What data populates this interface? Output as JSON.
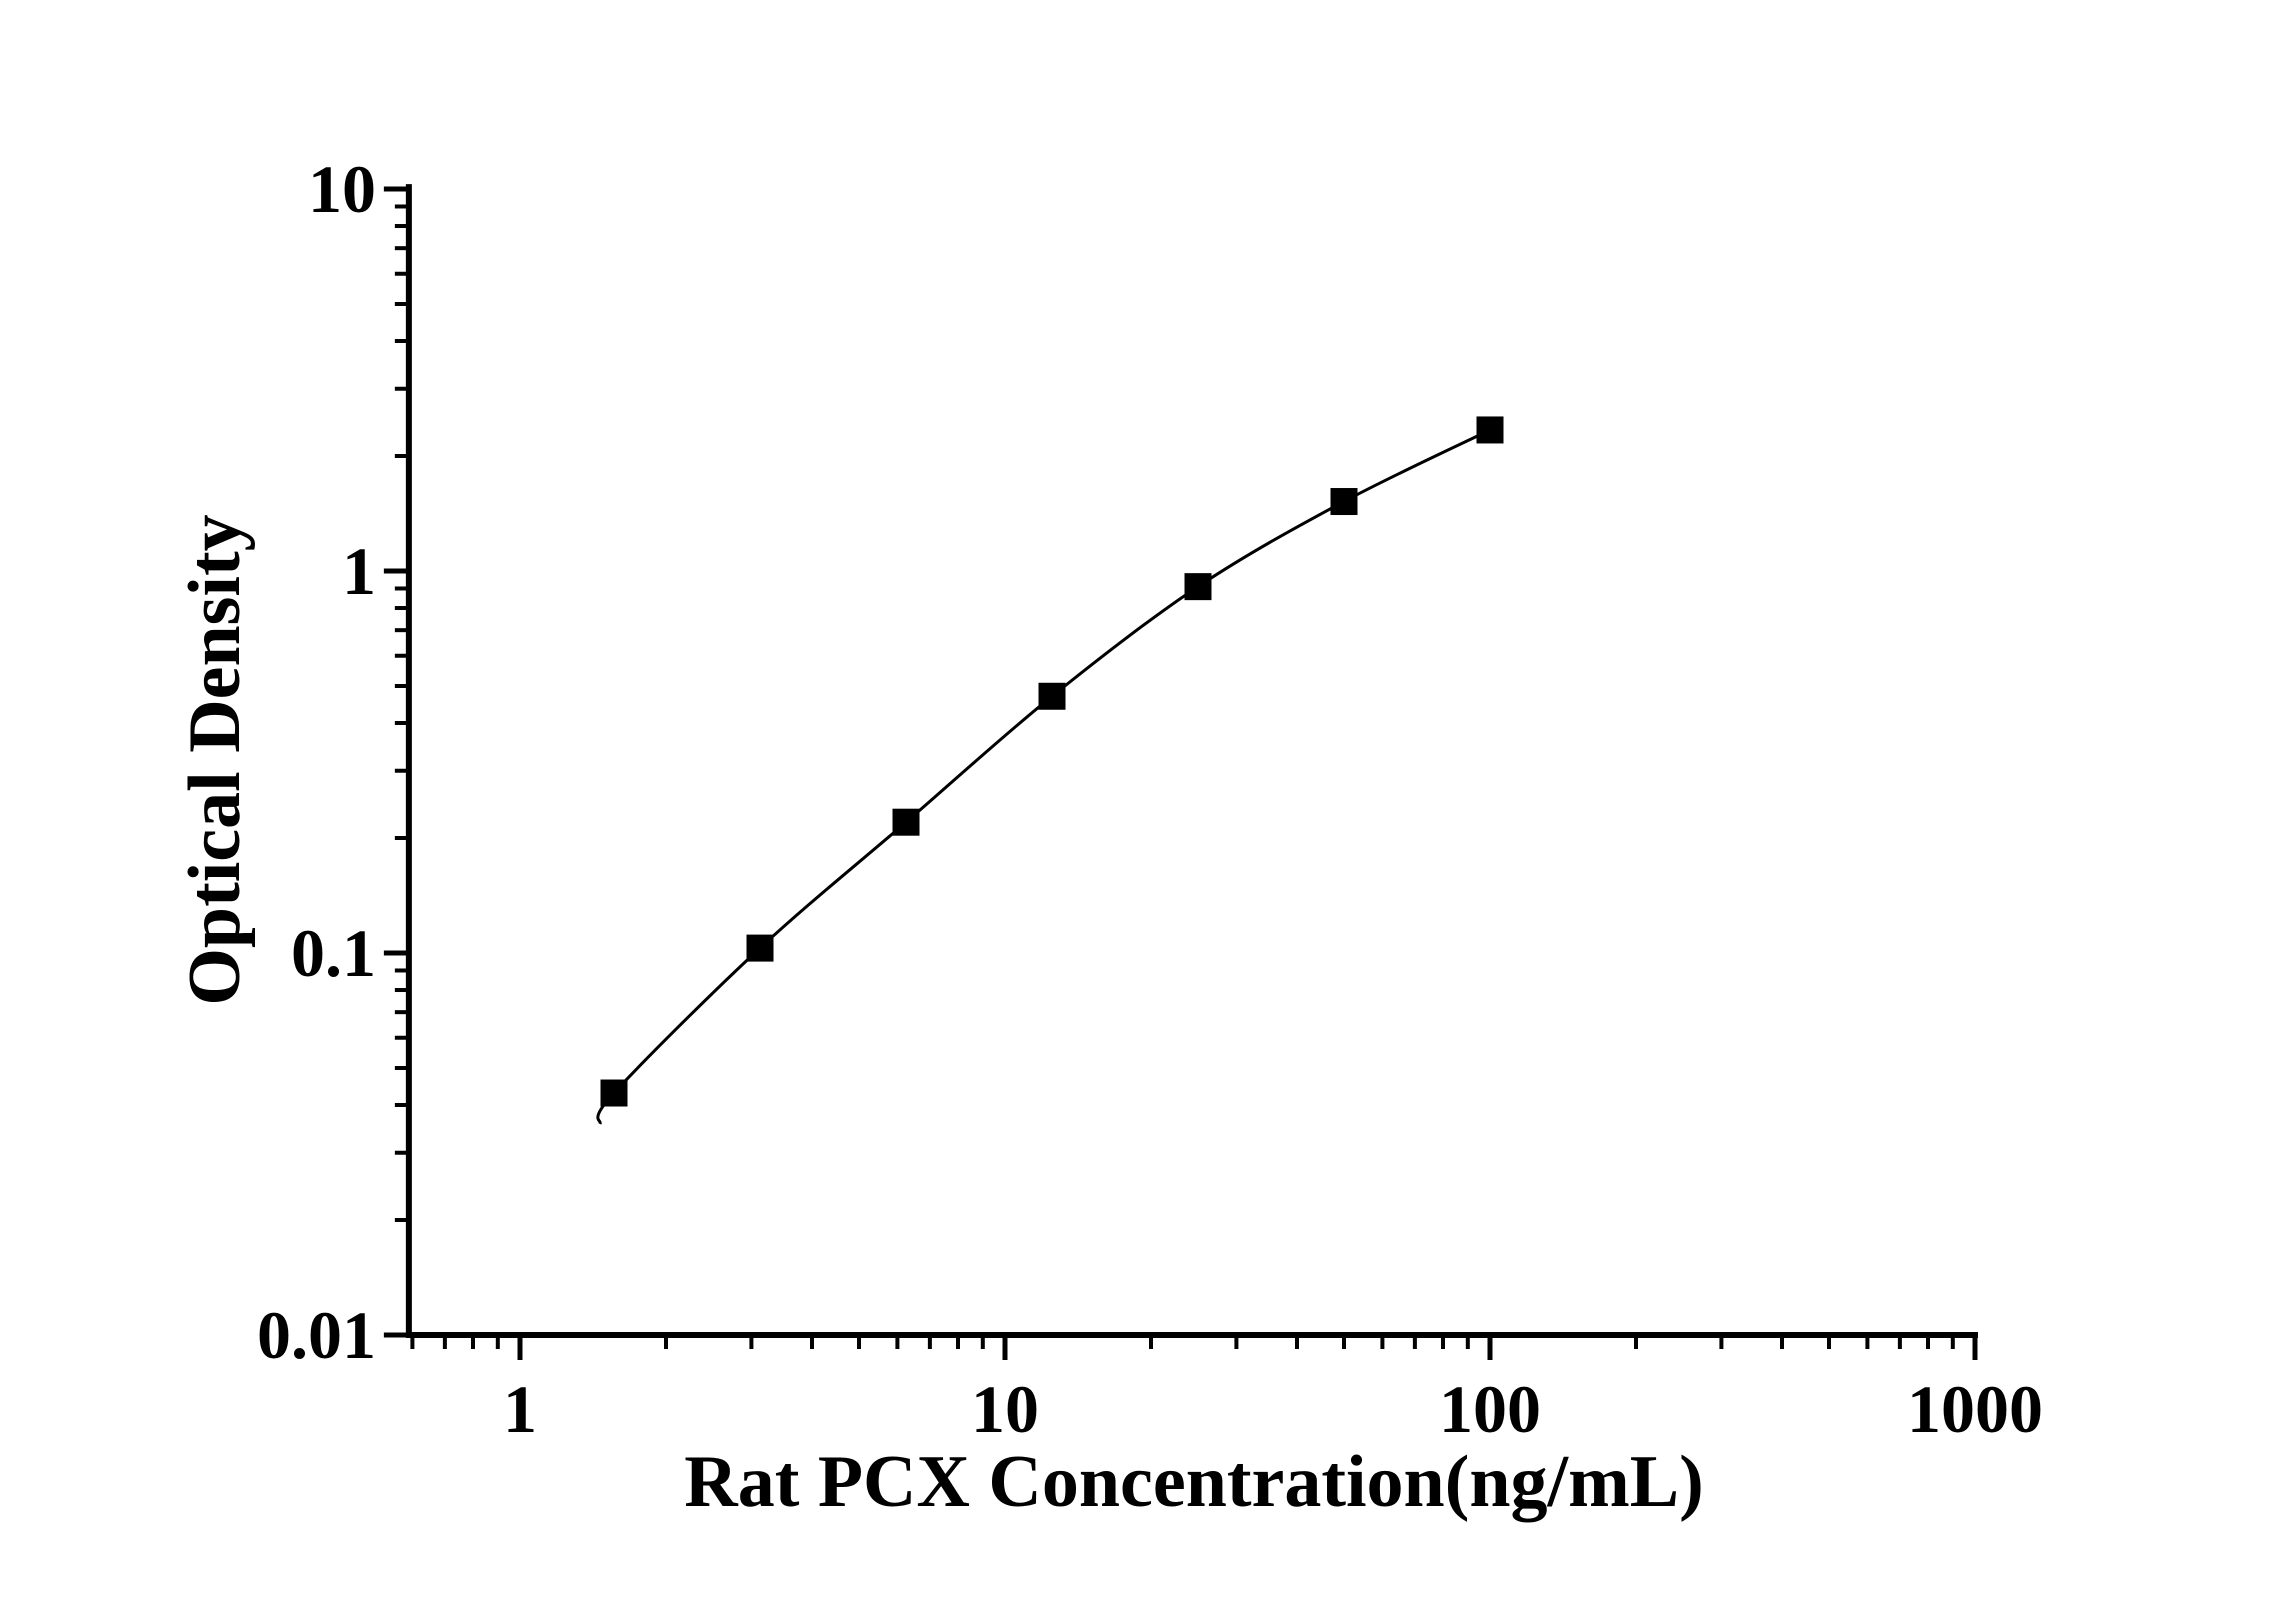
{
  "chart_data": {
    "type": "scatter",
    "title": "",
    "xlabel": "Rat PCX Concentration(ng/mL)",
    "ylabel": "Optical Density",
    "x_scale": "log",
    "y_scale": "log",
    "xlim": [
      0.59,
      1000
    ],
    "ylim": [
      0.01,
      10.3
    ],
    "x_major_ticks": [
      1,
      10,
      100,
      1000
    ],
    "x_tick_labels": [
      "1",
      "10",
      "100",
      "1000"
    ],
    "y_major_ticks": [
      0.01,
      0.1,
      1,
      10
    ],
    "y_tick_labels": [
      "0.01",
      "0.1",
      "1",
      "10"
    ],
    "grid": false,
    "legend_position": "none",
    "marker": "filled-square",
    "colors": {
      "axis": "#000000",
      "line": "#000000",
      "marker": "#000000",
      "text": "#000000",
      "background": "#ffffff"
    },
    "series": [
      {
        "name": "standard-curve",
        "x": [
          1.5625,
          3.125,
          6.25,
          12.5,
          25,
          50,
          100
        ],
        "y": [
          0.043,
          0.103,
          0.22,
          0.47,
          0.91,
          1.52,
          2.34
        ]
      }
    ]
  }
}
